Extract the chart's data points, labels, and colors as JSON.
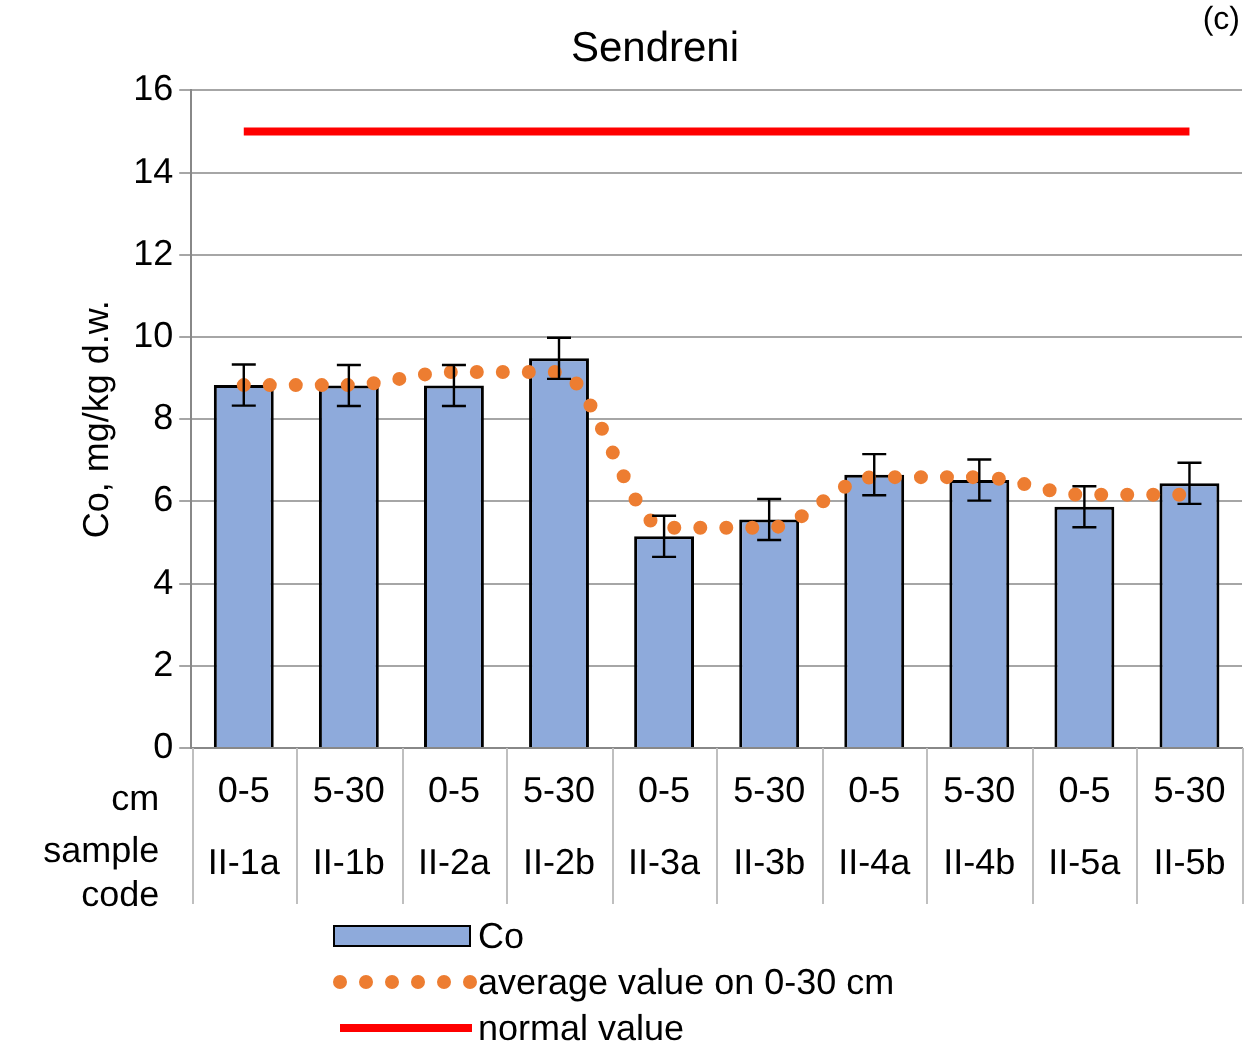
{
  "chart_data": {
    "type": "bar",
    "title": "Sendreni",
    "ylabel": "Co, mg/kg d.w.",
    "xlabel": "sample code",
    "categories": [
      "II-1a",
      "II-1b",
      "II-2a",
      "II-2b",
      "II-3a",
      "II-3b",
      "II-4a",
      "II-4b",
      "II-5a",
      "II-5b"
    ],
    "series": [
      {
        "name": "Co",
        "color": "#8eaadb",
        "values": [
          8.83,
          8.82,
          8.82,
          9.48,
          5.15,
          5.56,
          6.65,
          6.52,
          5.87,
          6.44
        ],
        "errors": [
          0.5,
          0.5,
          0.5,
          0.5,
          0.5,
          0.5,
          0.5,
          0.5,
          0.5,
          0.5
        ]
      },
      {
        "name": "average value on 0-30 cm",
        "type": "line",
        "color": "#ed7d31",
        "line_style": "dotted",
        "values": [
          8.83,
          8.83,
          9.15,
          9.15,
          5.36,
          5.36,
          6.59,
          6.59,
          6.16,
          6.16
        ]
      },
      {
        "name": "normal value",
        "type": "line",
        "color": "#ff0000",
        "line_style": "solid",
        "values": [
          15,
          15,
          15,
          15,
          15,
          15,
          15,
          15,
          15,
          15
        ]
      }
    ],
    "ylim": [
      0,
      16
    ],
    "yticks": [
      0,
      2,
      4,
      6,
      8,
      10,
      12,
      14,
      16
    ],
    "grid": "y",
    "legend": "bottom",
    "annotations": [
      "cm",
      "(c)",
      "0-5",
      "5-30",
      "0-5",
      "5-30",
      "0-5",
      "5-30",
      "0-5",
      "5-30",
      "0-5",
      "5-30"
    ]
  }
}
